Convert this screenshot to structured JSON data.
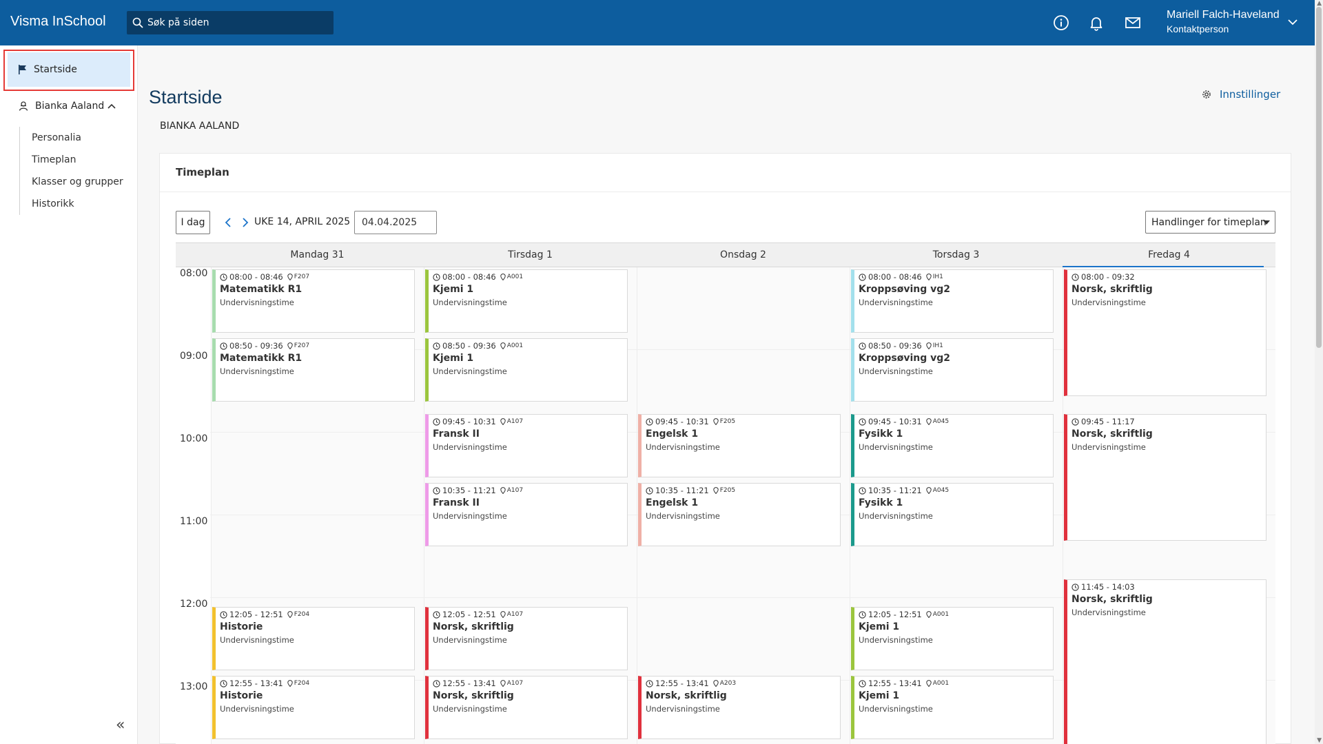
{
  "app": {
    "title": "Visma InSchool"
  },
  "search": {
    "placeholder": "Søk på siden"
  },
  "header": {
    "icons": [
      "info-icon",
      "bell-icon",
      "mail-icon"
    ],
    "user_name": "Mariell Falch-Haveland",
    "user_role": "Kontaktperson"
  },
  "sidebar": {
    "start_label": "Startside",
    "person_label": "Bianka Aaland",
    "items": [
      {
        "label": "Personalia"
      },
      {
        "label": "Timeplan"
      },
      {
        "label": "Klasser og grupper"
      },
      {
        "label": "Historikk"
      }
    ],
    "collapse_symbol": "«"
  },
  "main": {
    "title": "Startside",
    "subtitle": "BIANKA AALAND",
    "settings_label": "Innstillinger"
  },
  "timetable": {
    "card_title": "Timeplan",
    "today_label": "I dag",
    "week_label": "UKE 14, APRIL 2025",
    "date_value": "04.04.2025",
    "actions_label": "Handlinger for timeplan",
    "days": [
      "Mandag 31",
      "Tirsdag 1",
      "Onsdag 2",
      "Torsdag 3",
      "Fredag 4"
    ],
    "hours": [
      "08:00",
      "09:00",
      "10:00",
      "11:00",
      "12:00",
      "13:00"
    ],
    "events": [
      {
        "day": 0,
        "start": "08:00",
        "end": "08:46",
        "time": "08:00 - 08:46",
        "room": "F207",
        "title": "Matematikk R1",
        "type": "Undervisningstime",
        "color": "#a8dcae"
      },
      {
        "day": 0,
        "start": "08:50",
        "end": "09:36",
        "time": "08:50 - 09:36",
        "room": "F207",
        "title": "Matematikk R1",
        "type": "Undervisningstime",
        "color": "#a8dcae"
      },
      {
        "day": 0,
        "start": "12:05",
        "end": "12:51",
        "time": "12:05 - 12:51",
        "room": "F204",
        "title": "Historie",
        "type": "Undervisningstime",
        "color": "#f2c12e"
      },
      {
        "day": 0,
        "start": "12:55",
        "end": "13:41",
        "time": "12:55 - 13:41",
        "room": "F204",
        "title": "Historie",
        "type": "Undervisningstime",
        "color": "#f2c12e"
      },
      {
        "day": 1,
        "start": "08:00",
        "end": "08:46",
        "time": "08:00 - 08:46",
        "room": "A001",
        "title": "Kjemi 1",
        "type": "Undervisningstime",
        "color": "#9bc53d"
      },
      {
        "day": 1,
        "start": "08:50",
        "end": "09:36",
        "time": "08:50 - 09:36",
        "room": "A001",
        "title": "Kjemi 1",
        "type": "Undervisningstime",
        "color": "#9bc53d"
      },
      {
        "day": 1,
        "start": "09:45",
        "end": "10:31",
        "time": "09:45 - 10:31",
        "room": "A107",
        "title": "Fransk II",
        "type": "Undervisningstime",
        "color": "#ee9be8"
      },
      {
        "day": 1,
        "start": "10:35",
        "end": "11:21",
        "time": "10:35 - 11:21",
        "room": "A107",
        "title": "Fransk II",
        "type": "Undervisningstime",
        "color": "#ee9be8"
      },
      {
        "day": 1,
        "start": "12:05",
        "end": "12:51",
        "time": "12:05 - 12:51",
        "room": "A107",
        "title": "Norsk, skriftlig",
        "type": "Undervisningstime",
        "color": "#e0313d"
      },
      {
        "day": 1,
        "start": "12:55",
        "end": "13:41",
        "time": "12:55 - 13:41",
        "room": "A107",
        "title": "Norsk, skriftlig",
        "type": "Undervisningstime",
        "color": "#e0313d"
      },
      {
        "day": 2,
        "start": "09:45",
        "end": "10:31",
        "time": "09:45 - 10:31",
        "room": "F205",
        "title": "Engelsk 1",
        "type": "Undervisningstime",
        "color": "#efb0a6"
      },
      {
        "day": 2,
        "start": "10:35",
        "end": "11:21",
        "time": "10:35 - 11:21",
        "room": "F205",
        "title": "Engelsk 1",
        "type": "Undervisningstime",
        "color": "#efb0a6"
      },
      {
        "day": 2,
        "start": "12:55",
        "end": "13:41",
        "time": "12:55 - 13:41",
        "room": "A203",
        "title": "Norsk, skriftlig",
        "type": "Undervisningstime",
        "color": "#e0313d"
      },
      {
        "day": 3,
        "start": "08:00",
        "end": "08:46",
        "time": "08:00 - 08:46",
        "room": "IH1",
        "title": "Kroppsøving vg2",
        "type": "Undervisningstime",
        "color": "#a3e0ec"
      },
      {
        "day": 3,
        "start": "08:50",
        "end": "09:36",
        "time": "08:50 - 09:36",
        "room": "IH1",
        "title": "Kroppsøving vg2",
        "type": "Undervisningstime",
        "color": "#a3e0ec"
      },
      {
        "day": 3,
        "start": "09:45",
        "end": "10:31",
        "time": "09:45 - 10:31",
        "room": "A045",
        "title": "Fysikk 1",
        "type": "Undervisningstime",
        "color": "#1b9a8c"
      },
      {
        "day": 3,
        "start": "10:35",
        "end": "11:21",
        "time": "10:35 - 11:21",
        "room": "A045",
        "title": "Fysikk 1",
        "type": "Undervisningstime",
        "color": "#1b9a8c"
      },
      {
        "day": 3,
        "start": "12:05",
        "end": "12:51",
        "time": "12:05 - 12:51",
        "room": "A001",
        "title": "Kjemi 1",
        "type": "Undervisningstime",
        "color": "#9bc53d"
      },
      {
        "day": 3,
        "start": "12:55",
        "end": "13:41",
        "time": "12:55 - 13:41",
        "room": "A001",
        "title": "Kjemi 1",
        "type": "Undervisningstime",
        "color": "#9bc53d"
      },
      {
        "day": 4,
        "start": "08:00",
        "end": "09:32",
        "time": "08:00 - 09:32",
        "room": "",
        "title": "Norsk, skriftlig",
        "type": "Undervisningstime",
        "color": "#e0313d"
      },
      {
        "day": 4,
        "start": "09:45",
        "end": "11:17",
        "time": "09:45 - 11:17",
        "room": "",
        "title": "Norsk, skriftlig",
        "type": "Undervisningstime",
        "color": "#e0313d"
      },
      {
        "day": 4,
        "start": "11:45",
        "end": "14:03",
        "time": "11:45 - 14:03",
        "room": "",
        "title": "Norsk, skriftlig",
        "type": "Undervisningstime",
        "color": "#e0313d"
      }
    ]
  }
}
